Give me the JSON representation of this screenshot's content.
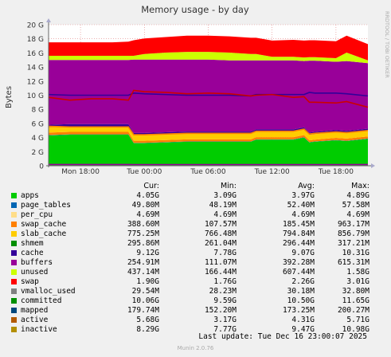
{
  "chart_data": {
    "type": "area",
    "title": "Memory usage - by day",
    "ylabel": "Bytes",
    "watermark": "RRDTOOL / TOBI OETIKER",
    "ylim": [
      0,
      20
    ],
    "ytick_labels": [
      "0",
      "2 G",
      "4 G",
      "6 G",
      "8 G",
      "10 G",
      "12 G",
      "14 G",
      "16 G",
      "18 G",
      "20 G"
    ],
    "ytick_values": [
      0,
      2,
      4,
      6,
      8,
      10,
      12,
      14,
      16,
      18,
      20
    ],
    "xlim": [
      0,
      30
    ],
    "xticks": [
      {
        "label": "Mon 18:00",
        "x": 3
      },
      {
        "label": "Tue 00:00",
        "x": 9
      },
      {
        "label": "Tue 06:00",
        "x": 15
      },
      {
        "label": "Tue 12:00",
        "x": 21
      },
      {
        "label": "Tue 18:00",
        "x": 27
      }
    ],
    "x": [
      0,
      2,
      4,
      6,
      7.5,
      8,
      9,
      11,
      13,
      15,
      17,
      19,
      19.5,
      21,
      23,
      24,
      24.5,
      25,
      27,
      28,
      30
    ],
    "stacked_series": [
      {
        "name": "apps",
        "color": "#00cc00",
        "values": [
          4.3,
          4.4,
          4.4,
          4.4,
          4.4,
          3.2,
          3.2,
          3.3,
          3.4,
          3.4,
          3.4,
          3.4,
          3.7,
          3.7,
          3.7,
          4.0,
          3.3,
          3.4,
          3.6,
          3.5,
          3.8
        ]
      },
      {
        "name": "page_tables",
        "color": "#0066b3",
        "values": [
          0.05,
          0.05,
          0.05,
          0.05,
          0.05,
          0.05,
          0.05,
          0.05,
          0.05,
          0.05,
          0.05,
          0.05,
          0.05,
          0.05,
          0.05,
          0.05,
          0.05,
          0.05,
          0.05,
          0.05,
          0.05
        ]
      },
      {
        "name": "swap_cache",
        "color": "#ff8000",
        "values": [
          0.35,
          0.35,
          0.35,
          0.35,
          0.35,
          0.3,
          0.3,
          0.3,
          0.3,
          0.3,
          0.3,
          0.3,
          0.3,
          0.3,
          0.3,
          0.3,
          0.25,
          0.25,
          0.3,
          0.3,
          0.3
        ]
      },
      {
        "name": "slab_cache",
        "color": "#ffcc00",
        "values": [
          0.8,
          0.8,
          0.8,
          0.8,
          0.8,
          0.8,
          0.8,
          0.8,
          0.8,
          0.8,
          0.8,
          0.8,
          0.8,
          0.8,
          0.8,
          0.8,
          0.8,
          0.8,
          0.8,
          0.8,
          0.8
        ]
      },
      {
        "name": "shmem",
        "color": "#330099",
        "values": [
          0.3,
          0.3,
          0.3,
          0.3,
          0.3,
          0.3,
          0.3,
          0.3,
          0.3,
          0.3,
          0.3,
          0.3,
          0.3,
          0.3,
          0.3,
          0.3,
          0.3,
          0.3,
          0.3,
          0.3,
          0.3
        ]
      },
      {
        "name": "cache",
        "color": "#990099",
        "values": [
          9.2,
          9.1,
          9.1,
          9.1,
          9.1,
          10.4,
          10.4,
          10.3,
          10.2,
          10.2,
          10.1,
          10.1,
          9.8,
          9.8,
          9.8,
          9.4,
          10.2,
          10.1,
          9.7,
          9.9,
          9.3
        ]
      },
      {
        "name": "unused",
        "color": "#ccff00",
        "values": [
          0.6,
          0.6,
          0.6,
          0.6,
          0.6,
          0.55,
          0.8,
          1.0,
          1.1,
          1.1,
          1.1,
          0.9,
          0.9,
          0.5,
          0.5,
          0.5,
          0.5,
          0.5,
          0.5,
          1.2,
          0.4
        ]
      },
      {
        "name": "swap",
        "color": "#ff0000",
        "values": [
          1.9,
          1.9,
          1.9,
          1.9,
          2.0,
          2.2,
          2.2,
          2.2,
          2.3,
          2.3,
          2.3,
          2.3,
          2.3,
          2.3,
          2.4,
          2.4,
          2.4,
          2.4,
          2.4,
          2.4,
          2.3
        ]
      }
    ],
    "line_series": [
      {
        "name": "committed",
        "color": "#330099",
        "values": [
          10.1,
          10.0,
          10.0,
          10.0,
          10.0,
          10.3,
          10.2,
          10.1,
          10.0,
          10.0,
          10.0,
          9.9,
          10.1,
          10.1,
          10.1,
          10.1,
          10.4,
          10.3,
          10.3,
          10.2,
          9.9
        ]
      },
      {
        "name": "active",
        "color": "#ff8000",
        "values": [
          5.6,
          5.5,
          5.5,
          5.5,
          5.5,
          4.4,
          4.4,
          4.5,
          4.6,
          4.6,
          4.6,
          4.6,
          4.9,
          4.9,
          4.9,
          5.2,
          4.5,
          4.6,
          4.8,
          4.7,
          5.0
        ]
      },
      {
        "name": "inactive",
        "color": "#cc0000",
        "values": [
          9.7,
          9.3,
          9.5,
          9.5,
          9.3,
          10.7,
          10.5,
          10.4,
          10.2,
          10.3,
          10.2,
          9.9,
          10.0,
          10.1,
          9.7,
          9.8,
          9.0,
          9.0,
          8.9,
          9.1,
          8.3
        ]
      },
      {
        "name": "mapped",
        "color": "#990099",
        "values": [
          0.18,
          0.18,
          0.18,
          0.18,
          0.18,
          0.17,
          0.17,
          0.17,
          0.17,
          0.17,
          0.17,
          0.17,
          0.17,
          0.17,
          0.17,
          0.17,
          0.17,
          0.17,
          0.17,
          0.17,
          0.18
        ]
      }
    ]
  },
  "legend": {
    "headers": {
      "cur": "Cur:",
      "min": "Min:",
      "avg": "Avg:",
      "max": "Max:"
    },
    "rows": [
      {
        "name": "apps",
        "color": "#00cc00",
        "cur": "4.05G",
        "min": "3.09G",
        "avg": "3.97G",
        "max": "4.89G"
      },
      {
        "name": "page_tables",
        "color": "#0066b3",
        "cur": "49.80M",
        "min": "48.19M",
        "avg": "52.40M",
        "max": "57.58M"
      },
      {
        "name": "per_cpu",
        "color": "#ffdd88",
        "cur": "4.69M",
        "min": "4.69M",
        "avg": "4.69M",
        "max": "4.69M"
      },
      {
        "name": "swap_cache",
        "color": "#ff8000",
        "cur": "388.60M",
        "min": "107.57M",
        "avg": "185.45M",
        "max": "963.17M"
      },
      {
        "name": "slab_cache",
        "color": "#ffcc00",
        "cur": "775.25M",
        "min": "766.48M",
        "avg": "794.84M",
        "max": "856.79M"
      },
      {
        "name": "shmem",
        "color": "#008f00",
        "cur": "295.86M",
        "min": "261.04M",
        "avg": "296.44M",
        "max": "317.21M"
      },
      {
        "name": "cache",
        "color": "#330099",
        "cur": "9.12G",
        "min": "7.78G",
        "avg": "9.07G",
        "max": "10.31G"
      },
      {
        "name": "buffers",
        "color": "#990099",
        "cur": "254.91M",
        "min": "111.07M",
        "avg": "392.28M",
        "max": "615.31M"
      },
      {
        "name": "unused",
        "color": "#ccff00",
        "cur": "437.14M",
        "min": "166.44M",
        "avg": "607.44M",
        "max": "1.58G"
      },
      {
        "name": "swap",
        "color": "#ff0000",
        "cur": "1.90G",
        "min": "1.76G",
        "avg": "2.26G",
        "max": "3.01G"
      },
      {
        "name": "vmalloc_used",
        "color": "#808080",
        "cur": "29.54M",
        "min": "28.23M",
        "avg": "30.18M",
        "max": "32.80M"
      },
      {
        "name": "committed",
        "color": "#008f00",
        "cur": "10.06G",
        "min": "9.59G",
        "avg": "10.50G",
        "max": "11.65G"
      },
      {
        "name": "mapped",
        "color": "#00487d",
        "cur": "179.74M",
        "min": "152.20M",
        "avg": "173.25M",
        "max": "200.27M"
      },
      {
        "name": "active",
        "color": "#b35a00",
        "cur": "5.68G",
        "min": "3.17G",
        "avg": "4.31G",
        "max": "5.71G"
      },
      {
        "name": "inactive",
        "color": "#b38f00",
        "cur": "8.29G",
        "min": "7.77G",
        "avg": "9.47G",
        "max": "10.98G"
      }
    ]
  },
  "last_update": "Last update: Tue Dec 16 23:00:07 2025",
  "footer": "Munin 2.0.76"
}
